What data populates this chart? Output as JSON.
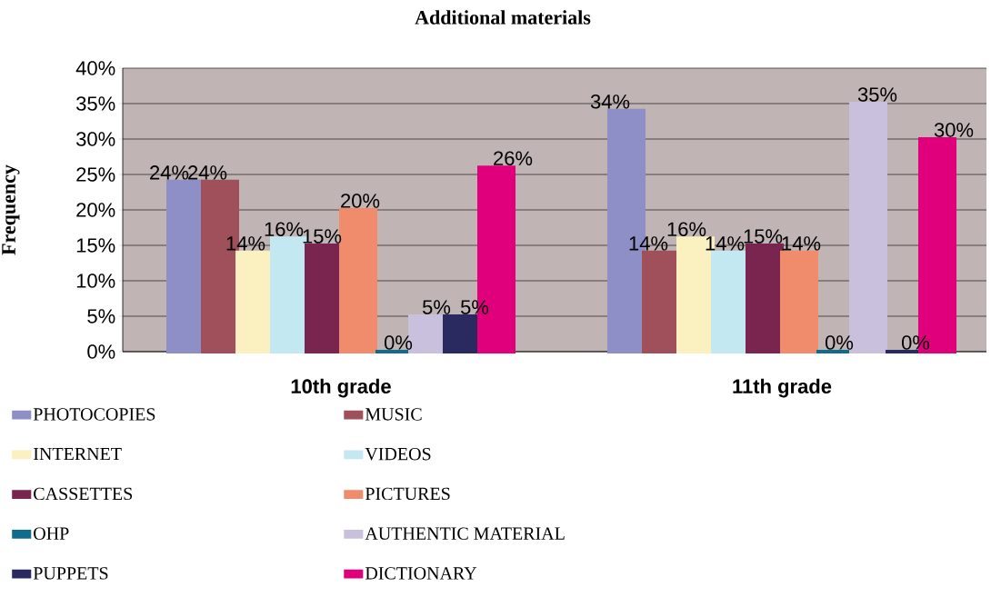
{
  "chart_data": {
    "type": "bar",
    "title": "Additional materials",
    "ylabel": "Frequency",
    "categories": [
      "10th grade",
      "11th grade"
    ],
    "series": [
      {
        "name": "PHOTOCOPIES",
        "color": "#8f8fc8",
        "values": [
          24,
          34
        ],
        "value_labels": [
          "24%",
          "34%"
        ]
      },
      {
        "name": "MUSIC",
        "color": "#a0505a",
        "values": [
          24,
          14
        ],
        "value_labels": [
          "24%",
          "14%"
        ]
      },
      {
        "name": "INTERNET",
        "color": "#fbf0c0",
        "values": [
          14,
          16
        ],
        "value_labels": [
          "14%",
          "16%"
        ]
      },
      {
        "name": "VIDEOS",
        "color": "#c4e8f2",
        "values": [
          16,
          14
        ],
        "value_labels": [
          "16%",
          "14%"
        ]
      },
      {
        "name": "CASSETTES",
        "color": "#7a2550",
        "values": [
          15,
          15
        ],
        "value_labels": [
          "15%",
          "15%"
        ]
      },
      {
        "name": "PICTURES",
        "color": "#f08c6c",
        "values": [
          20,
          14
        ],
        "value_labels": [
          "20%",
          "14%"
        ]
      },
      {
        "name": "OHP",
        "color": "#106c8c",
        "values": [
          0,
          0
        ],
        "value_labels": [
          "0%",
          "0%"
        ]
      },
      {
        "name": "AUTHENTIC MATERIAL",
        "color": "#c8c0dc",
        "values": [
          5,
          35
        ],
        "value_labels": [
          "5%",
          "35%"
        ]
      },
      {
        "name": "PUPPETS",
        "color": "#2a2a60",
        "values": [
          5,
          0
        ],
        "value_labels": [
          "5%",
          "0%"
        ]
      },
      {
        "name": "DICTIONARY",
        "color": "#e0007c",
        "values": [
          26,
          30
        ],
        "value_labels": [
          "26%",
          "30%"
        ]
      }
    ],
    "ylim": [
      0,
      40
    ],
    "yticks": [
      {
        "value": 0,
        "label": "0%"
      },
      {
        "value": 5,
        "label": "5%"
      },
      {
        "value": 10,
        "label": "10%"
      },
      {
        "value": 15,
        "label": "15%"
      },
      {
        "value": 20,
        "label": "20%"
      },
      {
        "value": 25,
        "label": "25%"
      },
      {
        "value": 30,
        "label": "30%"
      },
      {
        "value": 35,
        "label": "35%"
      },
      {
        "value": 40,
        "label": "40%"
      }
    ],
    "grid": "y",
    "legend": "bottom"
  }
}
